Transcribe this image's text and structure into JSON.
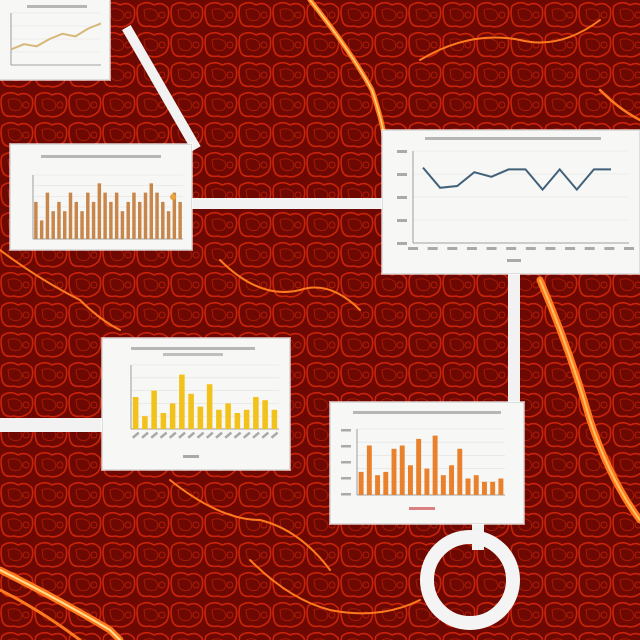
{
  "colors": {
    "tissue": "#7a0a02",
    "vessel": "#ff7a1e",
    "card": "#f7f7f5",
    "connector": "#f2f2f2",
    "line_series": "#41607a",
    "bar_yellow": "#f2c21a",
    "bar_orange": "#e9802c",
    "bar_small": "#c9864a"
  },
  "charts": [
    {
      "name": "top-left-partial-chart",
      "chart_data": {
        "type": "line",
        "title": "",
        "xlabel": "",
        "ylabel": "",
        "series": [
          {
            "values": [
              3,
              4,
              3.6,
              5,
              6,
              5.5,
              7,
              8
            ]
          }
        ]
      }
    },
    {
      "name": "left-bar-chart",
      "chart_data": {
        "type": "bar",
        "title": "",
        "xlabel": "",
        "ylabel": "",
        "values": [
          4,
          2,
          5,
          3,
          4,
          3,
          5,
          4,
          3,
          5,
          4,
          6,
          5,
          4,
          5,
          3,
          4,
          5,
          4,
          5,
          6,
          5,
          4,
          3,
          5,
          4
        ]
      }
    },
    {
      "name": "right-line-chart",
      "chart_data": {
        "type": "line",
        "title": "",
        "xlabel": "",
        "ylabel": "",
        "ylim": [
          0,
          100
        ],
        "categories": [
          "",
          "",
          "",
          "",
          "",
          "",
          "",
          "",
          "",
          "",
          "",
          ""
        ],
        "series": [
          {
            "values": [
              82,
              60,
              62,
              77,
              72,
              80,
              80,
              58,
              80,
              58,
              80,
              80
            ]
          }
        ]
      }
    },
    {
      "name": "middle-yellow-bar-chart",
      "chart_data": {
        "type": "bar",
        "title": "",
        "xlabel": "",
        "ylabel": "",
        "ylim": [
          0,
          100
        ],
        "values": [
          50,
          20,
          60,
          25,
          40,
          85,
          55,
          35,
          70,
          30,
          40,
          25,
          30,
          50,
          45,
          30
        ]
      }
    },
    {
      "name": "bottom-orange-bar-chart",
      "chart_data": {
        "type": "bar",
        "title": "",
        "xlabel": "",
        "ylabel": "",
        "ylim": [
          0,
          100
        ],
        "values": [
          35,
          75,
          30,
          35,
          70,
          75,
          45,
          85,
          40,
          90,
          30,
          45,
          70,
          25,
          30,
          20,
          20,
          25
        ]
      }
    }
  ]
}
